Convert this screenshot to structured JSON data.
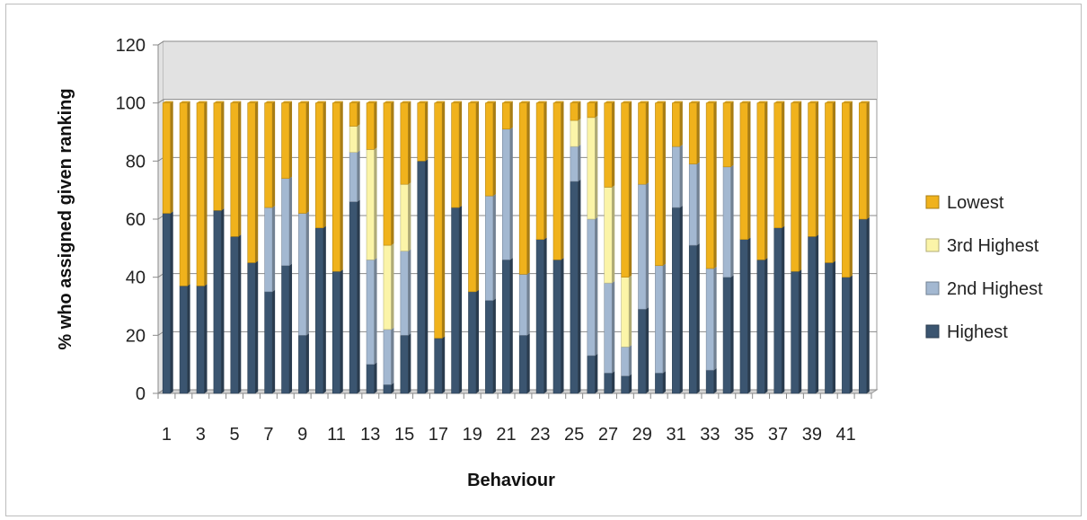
{
  "chart_data": {
    "type": "bar",
    "stacked": true,
    "xlabel": "Behaviour",
    "ylabel": "% who assigned given ranking",
    "ylim": [
      0,
      120
    ],
    "yticks": [
      0,
      20,
      40,
      60,
      80,
      100,
      120
    ],
    "x_tick_labels": [
      "1",
      "3",
      "5",
      "7",
      "9",
      "11",
      "13",
      "15",
      "17",
      "19",
      "21",
      "23",
      "25",
      "27",
      "29",
      "31",
      "33",
      "35",
      "37",
      "39",
      "41"
    ],
    "categories": [
      1,
      2,
      3,
      4,
      5,
      6,
      7,
      8,
      9,
      10,
      11,
      12,
      13,
      14,
      15,
      16,
      17,
      18,
      19,
      20,
      21,
      22,
      23,
      24,
      25,
      26,
      27,
      28,
      29,
      30,
      31,
      32,
      33,
      34,
      35,
      36,
      37,
      38,
      39,
      40,
      41,
      42
    ],
    "legend_position": "right",
    "grid": true,
    "plot_area_3d": true,
    "series": [
      {
        "name": "Highest",
        "color": "#3b5570",
        "values": [
          62,
          37,
          37,
          63,
          54,
          45,
          35,
          44,
          20,
          57,
          42,
          66,
          10,
          3,
          20,
          80,
          19,
          64,
          35,
          32,
          46,
          20,
          53,
          46,
          73,
          13,
          7,
          6,
          29,
          7,
          64,
          51,
          8,
          40,
          53,
          46,
          57,
          42,
          54,
          45,
          40,
          60
        ]
      },
      {
        "name": "2nd Highest",
        "color": "#a3b8d1",
        "values": [
          0,
          0,
          0,
          0,
          0,
          0,
          29,
          30,
          42,
          0,
          0,
          17,
          36,
          19,
          29,
          0,
          0,
          0,
          0,
          36,
          45,
          21,
          0,
          0,
          12,
          47,
          31,
          10,
          43,
          37,
          21,
          28,
          35,
          38,
          0,
          0,
          0,
          0,
          0,
          0,
          0,
          0
        ]
      },
      {
        "name": "3rd Highest",
        "color": "#fbf4a8",
        "values": [
          0,
          0,
          0,
          0,
          0,
          0,
          0,
          0,
          0,
          0,
          0,
          9,
          38,
          29,
          23,
          0,
          0,
          0,
          0,
          0,
          0,
          0,
          0,
          0,
          9,
          35,
          33,
          24,
          0,
          0,
          0,
          0,
          0,
          0,
          0,
          0,
          0,
          0,
          0,
          0,
          0,
          0
        ]
      },
      {
        "name": "Lowest",
        "color": "#f0b21c",
        "values": [
          38,
          63,
          63,
          37,
          46,
          55,
          36,
          26,
          38,
          43,
          58,
          8,
          16,
          49,
          28,
          20,
          81,
          36,
          65,
          32,
          9,
          59,
          47,
          54,
          6,
          5,
          29,
          60,
          28,
          56,
          15,
          21,
          57,
          22,
          47,
          54,
          43,
          58,
          46,
          55,
          60,
          40
        ]
      }
    ],
    "legend_order": [
      "Lowest",
      "3rd Highest",
      "2nd Highest",
      "Highest"
    ]
  }
}
